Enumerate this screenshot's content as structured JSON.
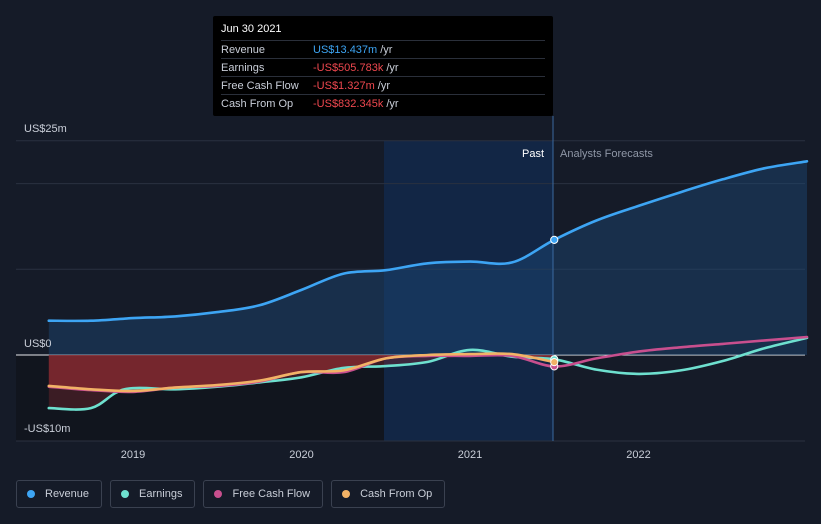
{
  "tooltip": {
    "date": "Jun 30 2021",
    "rows": [
      {
        "label": "Revenue",
        "value": "US$13.437m",
        "unit": "/yr",
        "sign": "pos"
      },
      {
        "label": "Earnings",
        "value": "-US$505.783k",
        "unit": "/yr",
        "sign": "neg"
      },
      {
        "label": "Free Cash Flow",
        "value": "-US$1.327m",
        "unit": "/yr",
        "sign": "neg"
      },
      {
        "label": "Cash From Op",
        "value": "-US$832.345k",
        "unit": "/yr",
        "sign": "neg"
      }
    ]
  },
  "labels": {
    "past": "Past",
    "forecast": "Analysts Forecasts",
    "y_top": "US$25m",
    "y_zero": "US$0",
    "y_bottom": "-US$10m"
  },
  "legend": [
    {
      "label": "Revenue",
      "color": "#3da5f4"
    },
    {
      "label": "Earnings",
      "color": "#6ee0cf"
    },
    {
      "label": "Free Cash Flow",
      "color": "#c84f8e"
    },
    {
      "label": "Cash From Op",
      "color": "#f2b266"
    }
  ],
  "chart_data": {
    "type": "line",
    "xlabel": "",
    "ylabel": "",
    "ylim": [
      -10,
      25
    ],
    "x_ticks": [
      {
        "label": "2019",
        "value": 2019.0
      },
      {
        "label": "2020",
        "value": 2020.0
      },
      {
        "label": "2021",
        "value": 2021.0
      },
      {
        "label": "2022",
        "value": 2022.0
      }
    ],
    "past_range": [
      2020.5,
      2021.5
    ],
    "forecast_from": 2021.5,
    "highlight_x": 2021.5,
    "series": [
      {
        "name": "Revenue",
        "color": "#3da5f4",
        "fill": true,
        "points": [
          [
            2018.5,
            4.0
          ],
          [
            2018.75,
            4.0
          ],
          [
            2019.0,
            4.3
          ],
          [
            2019.25,
            4.5
          ],
          [
            2019.5,
            5.0
          ],
          [
            2019.75,
            5.8
          ],
          [
            2020.0,
            7.6
          ],
          [
            2020.25,
            9.5
          ],
          [
            2020.5,
            9.9
          ],
          [
            2020.75,
            10.7
          ],
          [
            2021.0,
            10.9
          ],
          [
            2021.25,
            10.8
          ],
          [
            2021.5,
            13.437
          ],
          [
            2021.75,
            15.7
          ],
          [
            2022.0,
            17.4
          ],
          [
            2022.25,
            19.0
          ],
          [
            2022.5,
            20.5
          ],
          [
            2022.75,
            21.8
          ],
          [
            2023.0,
            22.6
          ]
        ]
      },
      {
        "name": "Earnings",
        "color": "#6ee0cf",
        "fill": false,
        "points": [
          [
            2018.5,
            -6.2
          ],
          [
            2018.75,
            -6.2
          ],
          [
            2018.95,
            -4.0
          ],
          [
            2019.25,
            -4.0
          ],
          [
            2019.5,
            -3.7
          ],
          [
            2019.75,
            -3.2
          ],
          [
            2020.0,
            -2.6
          ],
          [
            2020.25,
            -1.5
          ],
          [
            2020.5,
            -1.3
          ],
          [
            2020.75,
            -0.8
          ],
          [
            2021.0,
            0.6
          ],
          [
            2021.25,
            -0.2
          ],
          [
            2021.5,
            -0.506
          ],
          [
            2021.75,
            -1.7
          ],
          [
            2022.0,
            -2.2
          ],
          [
            2022.25,
            -1.8
          ],
          [
            2022.5,
            -0.7
          ],
          [
            2022.75,
            0.8
          ],
          [
            2023.0,
            2.0
          ]
        ]
      },
      {
        "name": "Free Cash Flow",
        "color": "#c84f8e",
        "fill": false,
        "points": [
          [
            2018.5,
            -3.7
          ],
          [
            2018.75,
            -4.1
          ],
          [
            2019.0,
            -4.3
          ],
          [
            2019.25,
            -3.8
          ],
          [
            2019.5,
            -3.6
          ],
          [
            2019.75,
            -3.1
          ],
          [
            2020.0,
            -2.0
          ],
          [
            2020.25,
            -2.0
          ],
          [
            2020.5,
            -0.4
          ],
          [
            2020.75,
            -0.1
          ],
          [
            2021.0,
            -0.1
          ],
          [
            2021.25,
            -0.1
          ],
          [
            2021.5,
            -1.327
          ],
          [
            2021.75,
            -0.4
          ],
          [
            2022.0,
            0.4
          ],
          [
            2022.25,
            0.9
          ],
          [
            2022.5,
            1.3
          ],
          [
            2022.75,
            1.7
          ],
          [
            2023.0,
            2.1
          ]
        ]
      },
      {
        "name": "Cash From Op",
        "color": "#f2b266",
        "fill": false,
        "points": [
          [
            2018.5,
            -3.6
          ],
          [
            2018.75,
            -4.0
          ],
          [
            2019.0,
            -4.2
          ],
          [
            2019.25,
            -3.8
          ],
          [
            2019.5,
            -3.5
          ],
          [
            2019.75,
            -3.0
          ],
          [
            2020.0,
            -2.0
          ],
          [
            2020.25,
            -1.8
          ],
          [
            2020.5,
            -0.4
          ],
          [
            2020.75,
            0.0
          ],
          [
            2021.0,
            0.1
          ],
          [
            2021.25,
            0.1
          ],
          [
            2021.5,
            -0.832
          ]
        ]
      }
    ]
  }
}
